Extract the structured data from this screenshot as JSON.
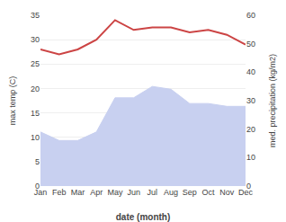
{
  "chart_data": {
    "type": "line",
    "categories": [
      "Jan",
      "Feb",
      "Mar",
      "Apr",
      "May",
      "Jun",
      "Jul",
      "Aug",
      "Sep",
      "Oct",
      "Nov",
      "Dec"
    ],
    "xlabel": "date (month)",
    "ylabel": "max temp (C)",
    "y2label": "med. precipitation (kg/m2)",
    "ylim": [
      0,
      35
    ],
    "yticks": [
      0,
      5,
      10,
      15,
      20,
      25,
      30,
      35
    ],
    "y2lim": [
      0,
      60
    ],
    "y2ticks": [
      0,
      10,
      20,
      30,
      40,
      50,
      60
    ],
    "grid": true,
    "series": [
      {
        "type": "area",
        "axis": "y2",
        "color": "#c8d0f0",
        "values": [
          19,
          16,
          16,
          19,
          31,
          31,
          35,
          34,
          29,
          29,
          28,
          28
        ]
      },
      {
        "type": "line",
        "color": "#cc4444",
        "values": [
          28,
          27,
          28,
          30,
          34,
          32,
          32.5,
          32.5,
          31.5,
          32,
          31,
          29
        ]
      }
    ]
  }
}
